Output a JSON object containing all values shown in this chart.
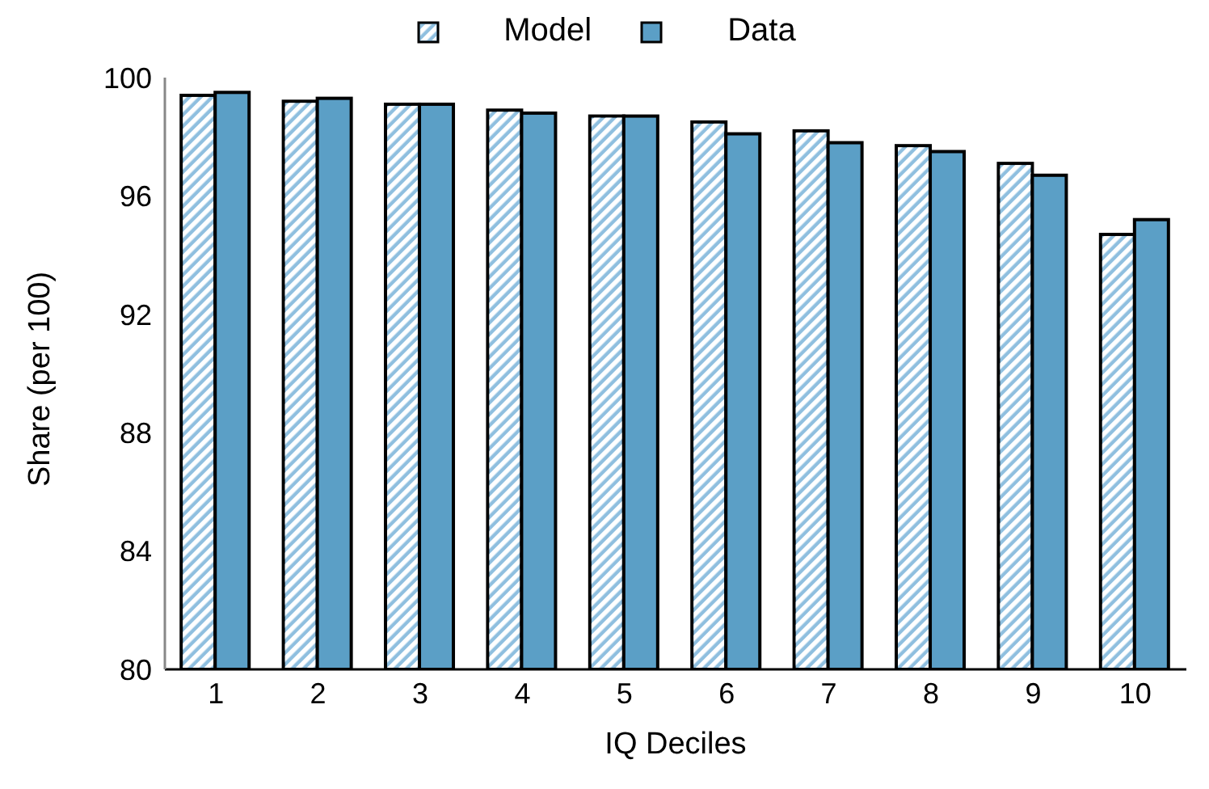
{
  "chart_data": {
    "type": "bar",
    "xlabel": "IQ Deciles",
    "ylabel": "Share (per 100)",
    "categories": [
      "1",
      "2",
      "3",
      "4",
      "5",
      "6",
      "7",
      "8",
      "9",
      "10"
    ],
    "series": [
      {
        "name": "Model",
        "color": "#8fbfdf",
        "values": [
          99.4,
          99.2,
          99.1,
          98.9,
          98.7,
          98.5,
          98.2,
          97.7,
          97.1,
          94.7
        ]
      },
      {
        "name": "Data",
        "color": "#5b9fc6",
        "values": [
          99.5,
          99.3,
          99.1,
          98.8,
          98.7,
          98.1,
          97.8,
          97.5,
          96.7,
          95.2
        ]
      }
    ],
    "ylim": [
      80,
      100
    ],
    "yticks": [
      80,
      84,
      88,
      92,
      96,
      100
    ],
    "legend": "top",
    "grid": false
  }
}
